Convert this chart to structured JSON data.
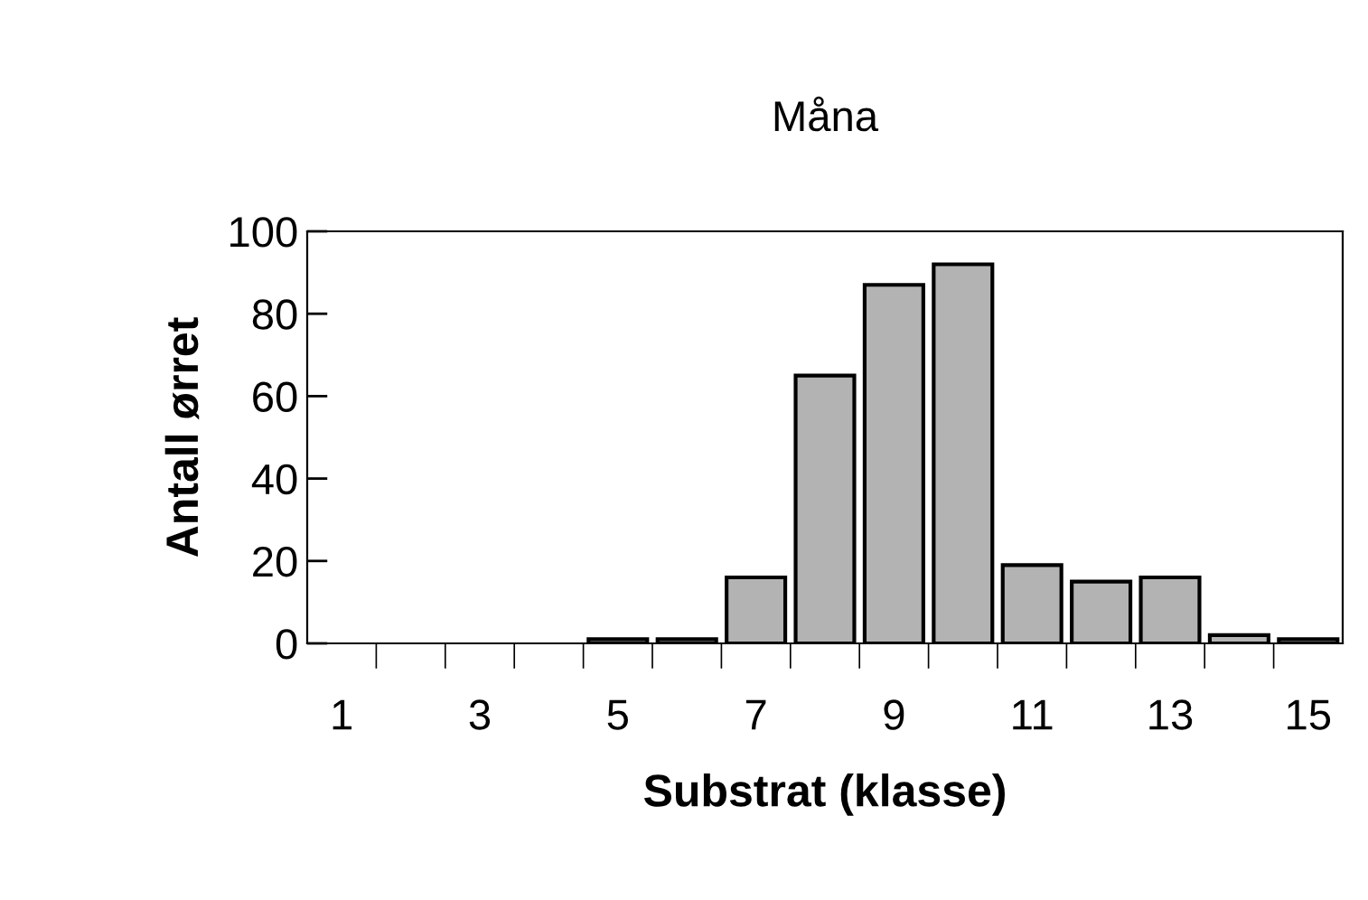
{
  "chart_data": {
    "type": "bar",
    "title": "Måna",
    "xlabel": "Substrat (klasse)",
    "ylabel": "Antall ørret",
    "categories": [
      "1",
      null,
      "3",
      null,
      "5",
      null,
      "7",
      null,
      "9",
      null,
      "11",
      null,
      "13",
      null,
      "15"
    ],
    "values": [
      0,
      0,
      0,
      0,
      1,
      1,
      16,
      65,
      87,
      92,
      19,
      15,
      16,
      2,
      1
    ],
    "color": "#b3b3b3",
    "ylim": [
      0,
      100
    ],
    "yticks": [
      0,
      20,
      40,
      60,
      80,
      100
    ],
    "grid": false
  }
}
